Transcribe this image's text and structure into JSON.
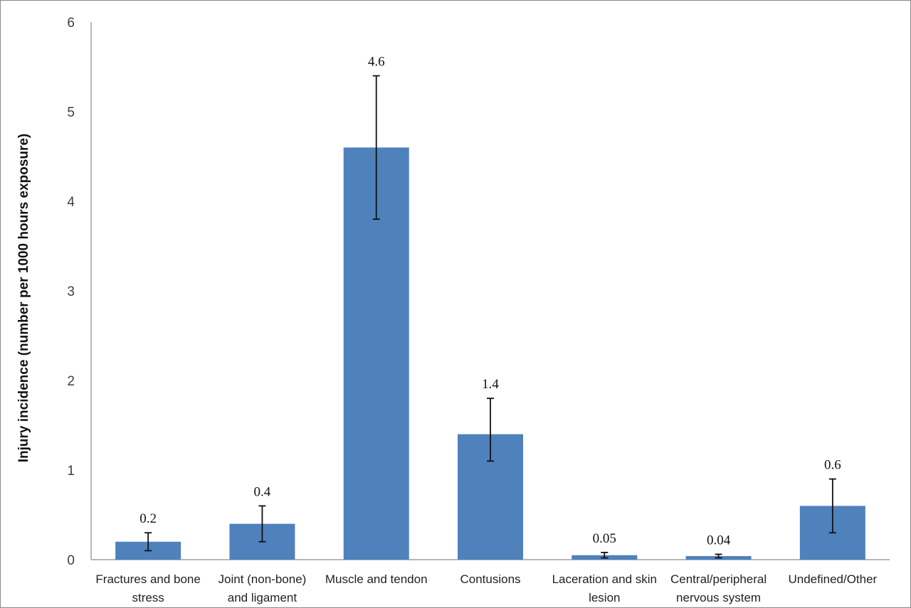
{
  "chart_data": {
    "type": "bar",
    "title": "",
    "xlabel": "",
    "ylabel": "Injury incidence (number per 1000 hours exposure)",
    "ylim": [
      0,
      6
    ],
    "yticks": [
      "0",
      "1",
      "2",
      "3",
      "4",
      "5",
      "6"
    ],
    "grid": false,
    "legend": "none",
    "bar_color": "#4f81bd",
    "categories": [
      [
        "Fractures and bone",
        "stress"
      ],
      [
        "Joint (non-bone)",
        "and ligament"
      ],
      [
        "Muscle and tendon"
      ],
      [
        "Contusions"
      ],
      [
        "Laceration and skin",
        "lesion"
      ],
      [
        "Central/peripheral",
        "nervous system"
      ],
      [
        "Undefined/Other"
      ]
    ],
    "values": [
      0.2,
      0.4,
      4.6,
      1.4,
      0.05,
      0.04,
      0.6
    ],
    "data_labels": [
      "0.2",
      "0.4",
      "4.6",
      "1.4",
      "0.05",
      "0.04",
      "0.6"
    ],
    "error_low": [
      0.1,
      0.2,
      3.8,
      1.1,
      0.02,
      0.02,
      0.3
    ],
    "error_high": [
      0.3,
      0.6,
      5.4,
      1.8,
      0.08,
      0.06,
      0.9
    ]
  }
}
